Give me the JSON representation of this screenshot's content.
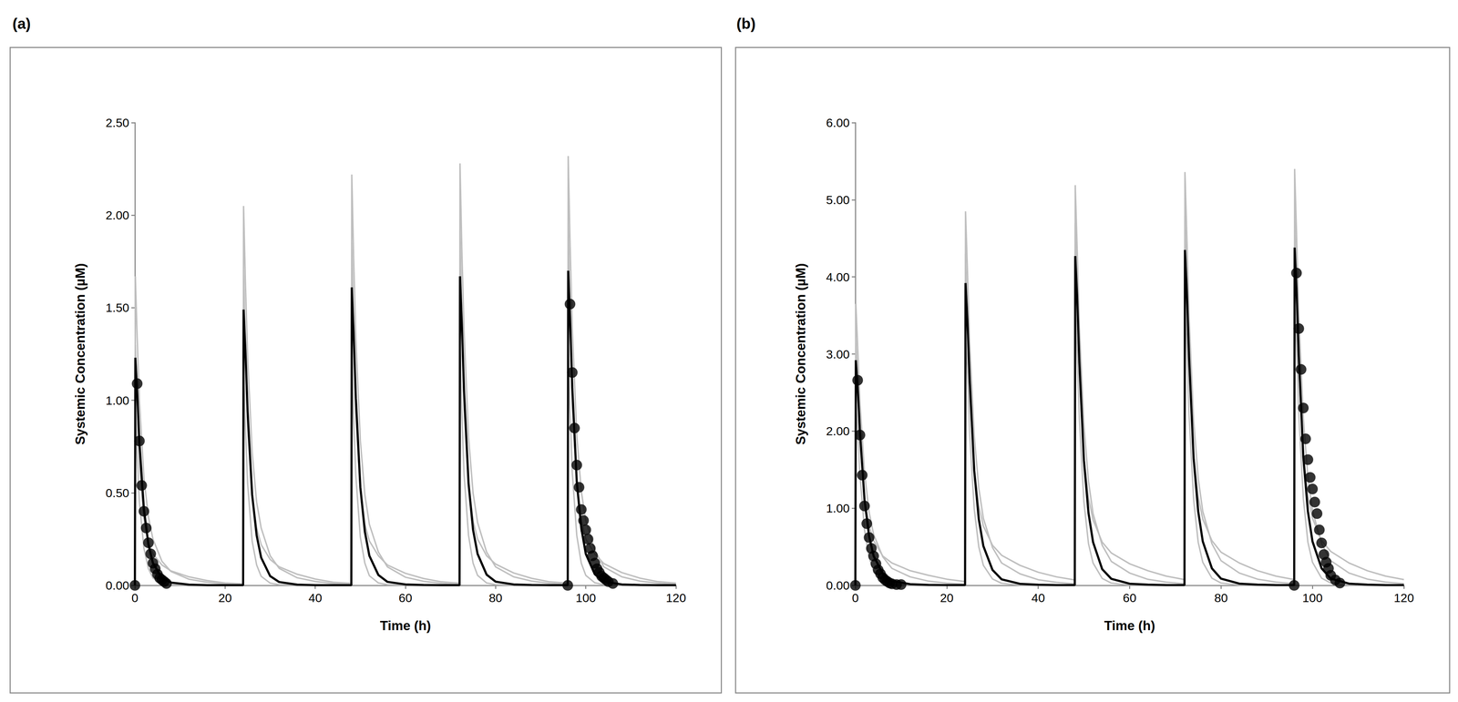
{
  "chart_data": [
    {
      "type": "line",
      "title": "(a)",
      "xlabel": "Time (h)",
      "ylabel": "Systemic Concentration (µM)",
      "xlim": [
        0,
        120
      ],
      "xticks": [
        0,
        20,
        40,
        60,
        80,
        100,
        120
      ],
      "ylim": [
        0,
        2.5
      ],
      "yticks": [
        {
          "value": 0,
          "label": "0.00"
        },
        {
          "value": 0.5,
          "label": "0.50"
        },
        {
          "value": 1,
          "label": "1.00"
        },
        {
          "value": 1.5,
          "label": "1.50"
        },
        {
          "value": 2,
          "label": "2.00"
        },
        {
          "value": 2.5,
          "label": "2.50"
        }
      ],
      "grid": false,
      "x": [
        0,
        0.1,
        0.5,
        1,
        2,
        3,
        4,
        6,
        8,
        12,
        16,
        20,
        24,
        24.1,
        24.5,
        25,
        26,
        27,
        28,
        30,
        32,
        36,
        40,
        44,
        48,
        48.1,
        48.5,
        49,
        50,
        51,
        52,
        54,
        56,
        60,
        64,
        68,
        72,
        72.1,
        72.5,
        73,
        74,
        75,
        76,
        78,
        80,
        84,
        88,
        92,
        96,
        96.1,
        96.5,
        97,
        98,
        99,
        100,
        102,
        104,
        108,
        112,
        116,
        120
      ],
      "series": [
        {
          "color": "#bfbfbf",
          "values": [
            0,
            1.67,
            1.34,
            1.0,
            0.58,
            0.37,
            0.25,
            0.13,
            0.075,
            0.033,
            0.017,
            0.008,
            0.004,
            2.05,
            1.64,
            1.23,
            0.72,
            0.45,
            0.31,
            0.16,
            0.092,
            0.041,
            0.021,
            0.01,
            0.005,
            2.22,
            1.78,
            1.33,
            0.78,
            0.49,
            0.33,
            0.18,
            0.1,
            0.044,
            0.022,
            0.011,
            0.005,
            2.28,
            1.82,
            1.37,
            0.8,
            0.5,
            0.34,
            0.18,
            0.1,
            0.046,
            0.023,
            0.011,
            0.006,
            2.32,
            1.86,
            1.39,
            0.81,
            0.51,
            0.35,
            0.19,
            0.1,
            0.046,
            0.023,
            0.012,
            0.006
          ]
        },
        {
          "color": "#bfbfbf",
          "values": [
            0,
            1.3,
            0.98,
            0.65,
            0.36,
            0.23,
            0.17,
            0.11,
            0.078,
            0.046,
            0.026,
            0.013,
            0.008,
            1.7,
            1.28,
            0.85,
            0.48,
            0.31,
            0.22,
            0.14,
            0.1,
            0.06,
            0.034,
            0.017,
            0.011,
            1.85,
            1.39,
            0.93,
            0.52,
            0.33,
            0.24,
            0.16,
            0.11,
            0.065,
            0.037,
            0.019,
            0.012,
            1.92,
            1.44,
            0.96,
            0.54,
            0.35,
            0.25,
            0.16,
            0.115,
            0.067,
            0.038,
            0.019,
            0.012,
            1.96,
            1.47,
            0.98,
            0.55,
            0.35,
            0.25,
            0.17,
            0.118,
            0.069,
            0.039,
            0.02,
            0.012
          ]
        },
        {
          "color": "#bfbfbf",
          "values": [
            0,
            1.0,
            0.7,
            0.45,
            0.2,
            0.09,
            0.04,
            0.01,
            0.003,
            0.001,
            0,
            0,
            0,
            1.22,
            0.85,
            0.55,
            0.24,
            0.11,
            0.049,
            0.012,
            0.004,
            0.001,
            0,
            0,
            0,
            1.3,
            0.91,
            0.59,
            0.26,
            0.12,
            0.052,
            0.013,
            0.004,
            0.001,
            0,
            0,
            0,
            1.34,
            0.94,
            0.6,
            0.27,
            0.12,
            0.054,
            0.013,
            0.004,
            0.001,
            0,
            0,
            0,
            1.36,
            0.95,
            0.61,
            0.27,
            0.12,
            0.054,
            0.014,
            0.004,
            0.001,
            0,
            0,
            0
          ]
        },
        {
          "color": "#000000",
          "values": [
            0,
            1.23,
            1.05,
            0.77,
            0.41,
            0.22,
            0.12,
            0.04,
            0.015,
            0.004,
            0.001,
            0.001,
            0.001,
            1.49,
            1.27,
            0.94,
            0.49,
            0.27,
            0.15,
            0.05,
            0.018,
            0.004,
            0.001,
            0.001,
            0.001,
            1.61,
            1.37,
            1.01,
            0.53,
            0.29,
            0.16,
            0.056,
            0.019,
            0.005,
            0.002,
            0.001,
            0.001,
            1.67,
            1.42,
            1.05,
            0.55,
            0.3,
            0.17,
            0.058,
            0.02,
            0.005,
            0.002,
            0.001,
            0.001,
            1.7,
            1.45,
            1.07,
            0.56,
            0.31,
            0.17,
            0.06,
            0.02,
            0.005,
            0.002,
            0.001,
            0.001
          ]
        },
        {
          "type": "scatter",
          "marker": "circle",
          "color": "#000000",
          "x": [
            0,
            0.5,
            1,
            1.5,
            2,
            2.5,
            3,
            3.5,
            4,
            4.5,
            5,
            5.5,
            6,
            6.5,
            7,
            96,
            96.5,
            97,
            97.5,
            98,
            98.5,
            99,
            99.5,
            100,
            100.5,
            101,
            101.5,
            102,
            102.5,
            103,
            103.5,
            104,
            104.5,
            105,
            106
          ],
          "values": [
            0,
            1.09,
            0.78,
            0.54,
            0.4,
            0.31,
            0.23,
            0.17,
            0.12,
            0.09,
            0.06,
            0.04,
            0.03,
            0.02,
            0.01,
            0,
            1.52,
            1.15,
            0.85,
            0.65,
            0.53,
            0.41,
            0.35,
            0.3,
            0.25,
            0.2,
            0.16,
            0.12,
            0.09,
            0.07,
            0.05,
            0.04,
            0.03,
            0.02,
            0.01
          ]
        }
      ]
    },
    {
      "type": "line",
      "title": "(b)",
      "xlabel": "Time (h)",
      "ylabel": "Systemic Concentration (µM)",
      "xlim": [
        0,
        120
      ],
      "xticks": [
        0,
        20,
        40,
        60,
        80,
        100,
        120
      ],
      "ylim": [
        0,
        6
      ],
      "yticks": [
        {
          "value": 0,
          "label": "0.00"
        },
        {
          "value": 1,
          "label": "1.00"
        },
        {
          "value": 2,
          "label": "2.00"
        },
        {
          "value": 3,
          "label": "3.00"
        },
        {
          "value": 4,
          "label": "4.00"
        },
        {
          "value": 5,
          "label": "5.00"
        },
        {
          "value": 6,
          "label": "6.00"
        }
      ],
      "grid": false,
      "x": [
        0,
        0.1,
        0.5,
        1,
        2,
        3,
        4,
        6,
        8,
        12,
        16,
        20,
        24,
        24.1,
        24.5,
        25,
        26,
        27,
        28,
        30,
        32,
        36,
        40,
        44,
        48,
        48.1,
        48.5,
        49,
        50,
        51,
        52,
        54,
        56,
        60,
        64,
        68,
        72,
        72.1,
        72.5,
        73,
        74,
        75,
        76,
        78,
        80,
        84,
        88,
        92,
        96,
        96.1,
        96.5,
        97,
        98,
        99,
        100,
        102,
        104,
        108,
        112,
        116,
        120
      ],
      "series": [
        {
          "color": "#bfbfbf",
          "values": [
            0,
            3.65,
            3.1,
            2.37,
            1.46,
            0.95,
            0.66,
            0.37,
            0.22,
            0.11,
            0.055,
            0.029,
            0.015,
            4.85,
            4.12,
            3.15,
            1.94,
            1.26,
            0.87,
            0.49,
            0.29,
            0.15,
            0.073,
            0.039,
            0.02,
            5.19,
            4.41,
            3.37,
            2.08,
            1.35,
            0.93,
            0.52,
            0.31,
            0.16,
            0.078,
            0.042,
            0.021,
            5.36,
            4.56,
            3.48,
            2.14,
            1.39,
            0.96,
            0.54,
            0.32,
            0.16,
            0.08,
            0.043,
            0.022,
            5.4,
            4.59,
            3.51,
            2.16,
            1.4,
            0.97,
            0.54,
            0.32,
            0.16,
            0.081,
            0.043,
            0.022
          ]
        },
        {
          "color": "#bfbfbf",
          "values": [
            0,
            3.2,
            2.56,
            1.86,
            1.12,
            0.77,
            0.58,
            0.38,
            0.29,
            0.19,
            0.13,
            0.08,
            0.05,
            4.3,
            3.44,
            2.49,
            1.51,
            1.03,
            0.77,
            0.52,
            0.39,
            0.26,
            0.17,
            0.11,
            0.07,
            4.7,
            3.76,
            2.73,
            1.65,
            1.13,
            0.85,
            0.56,
            0.42,
            0.28,
            0.19,
            0.12,
            0.075,
            4.8,
            3.84,
            2.78,
            1.68,
            1.15,
            0.86,
            0.58,
            0.43,
            0.29,
            0.19,
            0.12,
            0.075,
            4.85,
            3.88,
            2.81,
            1.7,
            1.16,
            0.87,
            0.58,
            0.44,
            0.29,
            0.19,
            0.12,
            0.075
          ]
        },
        {
          "color": "#bfbfbf",
          "values": [
            0,
            2.4,
            2.04,
            1.44,
            0.72,
            0.36,
            0.19,
            0.06,
            0.019,
            0.002,
            0,
            0,
            0,
            3.3,
            2.81,
            1.98,
            0.99,
            0.5,
            0.26,
            0.083,
            0.026,
            0.003,
            0,
            0,
            0,
            3.6,
            3.06,
            2.16,
            1.08,
            0.54,
            0.29,
            0.09,
            0.029,
            0.004,
            0,
            0,
            0,
            3.7,
            3.15,
            2.22,
            1.11,
            0.56,
            0.3,
            0.093,
            0.03,
            0.004,
            0,
            0,
            0,
            3.72,
            3.16,
            2.23,
            1.12,
            0.56,
            0.3,
            0.093,
            0.03,
            0.004,
            0,
            0,
            0
          ]
        },
        {
          "color": "#000000",
          "values": [
            0,
            2.92,
            2.57,
            1.99,
            1.11,
            0.64,
            0.38,
            0.15,
            0.058,
            0.015,
            0.006,
            0.003,
            0.003,
            3.92,
            3.45,
            2.67,
            1.49,
            0.86,
            0.51,
            0.2,
            0.078,
            0.02,
            0.008,
            0.004,
            0.004,
            4.27,
            3.76,
            2.9,
            1.62,
            0.94,
            0.56,
            0.21,
            0.085,
            0.021,
            0.009,
            0.004,
            0.004,
            4.35,
            3.83,
            2.96,
            1.65,
            0.96,
            0.57,
            0.22,
            0.087,
            0.022,
            0.009,
            0.004,
            0.004,
            4.38,
            3.85,
            2.98,
            1.66,
            0.96,
            0.57,
            0.22,
            0.088,
            0.022,
            0.009,
            0.004,
            0.004
          ]
        },
        {
          "type": "scatter",
          "marker": "circle",
          "color": "#000000",
          "x": [
            0,
            0.5,
            1,
            1.5,
            2,
            2.5,
            3,
            3.5,
            4,
            4.5,
            5,
            5.5,
            6,
            6.5,
            7,
            7.5,
            8,
            9,
            10,
            96,
            96.5,
            97,
            97.5,
            98,
            98.5,
            99,
            99.5,
            100,
            100.5,
            101,
            101.5,
            102,
            102.5,
            103,
            103.5,
            104,
            105,
            106
          ],
          "values": [
            0,
            2.66,
            1.95,
            1.43,
            1.03,
            0.8,
            0.62,
            0.48,
            0.38,
            0.28,
            0.2,
            0.15,
            0.1,
            0.07,
            0.05,
            0.03,
            0.02,
            0.01,
            0.01,
            0,
            4.05,
            3.33,
            2.8,
            2.3,
            1.9,
            1.63,
            1.4,
            1.25,
            1.08,
            0.93,
            0.72,
            0.55,
            0.4,
            0.3,
            0.22,
            0.13,
            0.07,
            0.03
          ]
        }
      ]
    }
  ]
}
